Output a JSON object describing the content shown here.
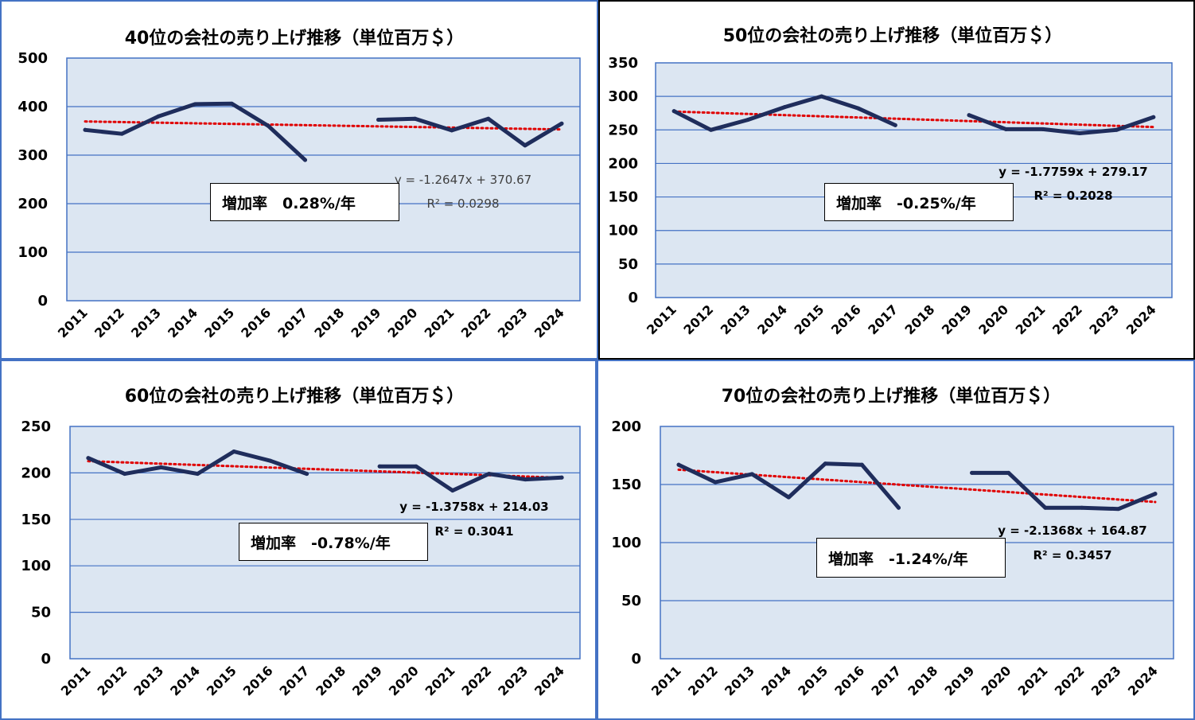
{
  "colors": {
    "plot_bg": "#dce6f2",
    "plot_border": "#4472c4",
    "gridline": "#4472c4",
    "series": "#1f2d5c",
    "trendline": "#e00000"
  },
  "chart_data": [
    {
      "type": "line",
      "title": "40位の会社の売り上げ推移（単位百万＄）",
      "categories": [
        "2011",
        "2012",
        "2013",
        "2014",
        "2015",
        "2016",
        "2017",
        "2018",
        "2019",
        "2020",
        "2021",
        "2022",
        "2023",
        "2024"
      ],
      "series": [
        {
          "values": [
            352,
            344,
            380,
            405,
            406,
            360,
            290,
            null,
            373,
            375,
            351,
            375,
            320,
            365
          ]
        }
      ],
      "trendline": {
        "type": "linear",
        "slope": -1.2647,
        "intercept": 370.67,
        "equation": "y = -1.2647x + 370.67",
        "r2_label": "R² = 0.0298"
      },
      "growth_label": "増加率　0.28%/年",
      "ylim": [
        0,
        500
      ],
      "yticks": [
        0,
        100,
        200,
        300,
        400,
        500
      ],
      "xlabel": "",
      "ylabel": "",
      "grid": true
    },
    {
      "type": "line",
      "title": "50位の会社の売り上げ推移（単位百万＄）",
      "categories": [
        "2011",
        "2012",
        "2013",
        "2014",
        "2015",
        "2016",
        "2017",
        "2018",
        "2019",
        "2020",
        "2021",
        "2022",
        "2023",
        "2024"
      ],
      "series": [
        {
          "values": [
            278,
            250,
            265,
            284,
            300,
            282,
            257,
            null,
            272,
            251,
            251,
            245,
            250,
            269
          ]
        }
      ],
      "trendline": {
        "type": "linear",
        "slope": -1.7759,
        "intercept": 279.17,
        "equation": "y = -1.7759x + 279.17",
        "r2_label": "R² = 0.2028"
      },
      "growth_label": "増加率　-0.25%/年",
      "ylim": [
        0,
        350
      ],
      "yticks": [
        0,
        50,
        100,
        150,
        200,
        250,
        300,
        350
      ],
      "xlabel": "",
      "ylabel": "",
      "grid": true
    },
    {
      "type": "line",
      "title": "60位の会社の売り上げ推移（単位百万＄）",
      "categories": [
        "2011",
        "2012",
        "2013",
        "2014",
        "2015",
        "2016",
        "2017",
        "2018",
        "2019",
        "2020",
        "2021",
        "2022",
        "2023",
        "2024"
      ],
      "series": [
        {
          "values": [
            216,
            199,
            206,
            199,
            223,
            213,
            199,
            null,
            207,
            207,
            181,
            199,
            193,
            195
          ]
        }
      ],
      "trendline": {
        "type": "linear",
        "slope": -1.3758,
        "intercept": 214.03,
        "equation": "y = -1.3758x + 214.03",
        "r2_label": "R² = 0.3041"
      },
      "growth_label": "増加率　-0.78%/年",
      "ylim": [
        0,
        250
      ],
      "yticks": [
        0,
        50,
        100,
        150,
        200,
        250
      ],
      "xlabel": "",
      "ylabel": "",
      "grid": true
    },
    {
      "type": "line",
      "title": "70位の会社の売り上げ推移（単位百万＄）",
      "categories": [
        "2011",
        "2012",
        "2013",
        "2014",
        "2015",
        "2016",
        "2017",
        "2018",
        "2019",
        "2020",
        "2021",
        "2022",
        "2023",
        "2024"
      ],
      "series": [
        {
          "values": [
            167,
            152,
            159,
            139,
            168,
            167,
            130,
            null,
            160,
            160,
            130,
            130,
            129,
            142
          ]
        }
      ],
      "trendline": {
        "type": "linear",
        "slope": -2.1368,
        "intercept": 164.87,
        "equation": "y = -2.1368x + 164.87",
        "r2_label": "R² = 0.3457"
      },
      "growth_label": "増加率　-1.24%/年",
      "ylim": [
        0,
        200
      ],
      "yticks": [
        0,
        50,
        100,
        150,
        200
      ],
      "xlabel": "",
      "ylabel": "",
      "grid": true
    }
  ]
}
